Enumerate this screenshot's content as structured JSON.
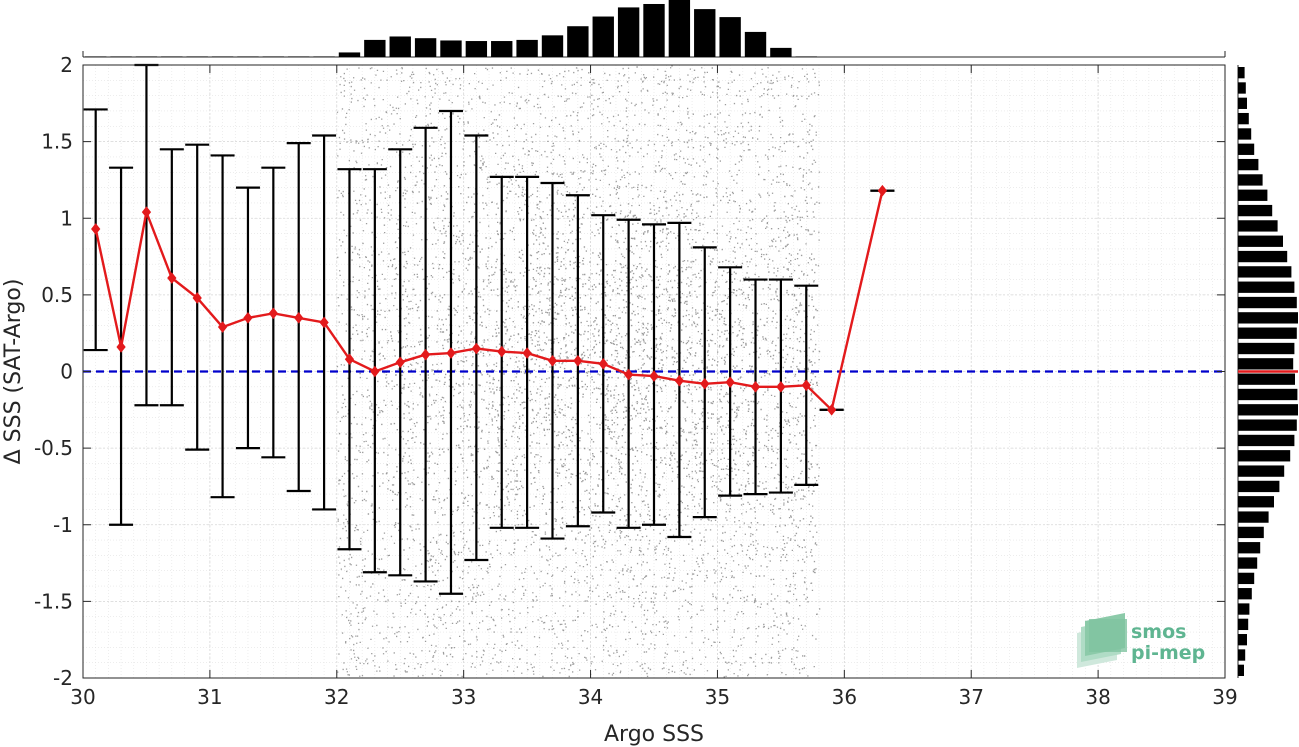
{
  "chart_data": {
    "type": "scatter",
    "xlabel": "Argo SSS",
    "ylabel": "Δ SSS (SAT-Argo)",
    "xlim": [
      30,
      39
    ],
    "ylim": [
      -2,
      2
    ],
    "xticks": [
      "30",
      "31",
      "32",
      "33",
      "34",
      "35",
      "36",
      "37",
      "38",
      "39"
    ],
    "yticks": [
      "-2",
      "-1.5",
      "-1",
      "-0.5",
      "0",
      "0.5",
      "1",
      "1.5",
      "2"
    ],
    "grid": true,
    "minor_grid": true,
    "zero_line": {
      "y": 0,
      "color": "#0000cc",
      "style": "dashed"
    },
    "scatter_cloud": {
      "x_range": [
        32.0,
        35.8
      ],
      "y_range": [
        -2,
        2
      ],
      "color": "#8c8c8c"
    },
    "binned_mean": {
      "color": "#e31a1c",
      "x": [
        30.1,
        30.3,
        30.5,
        30.7,
        30.9,
        31.1,
        31.3,
        31.5,
        31.7,
        31.9,
        32.1,
        32.3,
        32.5,
        32.7,
        32.9,
        33.1,
        33.3,
        33.5,
        33.7,
        33.9,
        34.1,
        34.3,
        34.5,
        34.7,
        34.9,
        35.1,
        35.3,
        35.5,
        35.7,
        35.9,
        36.3
      ],
      "y": [
        0.93,
        0.16,
        1.04,
        0.61,
        0.48,
        0.29,
        0.35,
        0.38,
        0.35,
        0.32,
        0.08,
        0.0,
        0.06,
        0.11,
        0.12,
        0.15,
        0.13,
        0.12,
        0.07,
        0.07,
        0.05,
        -0.02,
        -0.03,
        -0.06,
        -0.08,
        -0.07,
        -0.1,
        -0.1,
        -0.09,
        -0.25,
        1.18
      ],
      "err_low": [
        0.14,
        -1.0,
        -0.22,
        -0.22,
        -0.51,
        -0.82,
        -0.5,
        -0.56,
        -0.78,
        -0.9,
        -1.16,
        -1.31,
        -1.33,
        -1.37,
        -1.45,
        -1.23,
        -1.02,
        -1.02,
        -1.09,
        -1.01,
        -0.92,
        -1.02,
        -1.0,
        -1.08,
        -0.95,
        -0.81,
        -0.8,
        -0.79,
        -0.74,
        -0.25,
        1.18
      ],
      "err_high": [
        1.71,
        1.33,
        2.0,
        1.45,
        1.48,
        1.41,
        1.2,
        1.33,
        1.49,
        1.54,
        1.32,
        1.32,
        1.45,
        1.59,
        1.7,
        1.54,
        1.27,
        1.27,
        1.23,
        1.15,
        1.02,
        0.99,
        0.96,
        0.97,
        0.81,
        0.68,
        0.6,
        0.6,
        0.56,
        -0.25,
        1.18
      ]
    },
    "top_histogram": {
      "bin_width": 0.2,
      "x_start": 30.0,
      "values": [
        0.01,
        0.01,
        0.01,
        0.01,
        0.01,
        0.01,
        0.01,
        0.01,
        0.01,
        0.01,
        0.08,
        0.3,
        0.36,
        0.33,
        0.29,
        0.28,
        0.28,
        0.3,
        0.38,
        0.54,
        0.71,
        0.87,
        0.93,
        1.0,
        0.84,
        0.7,
        0.44,
        0.16,
        0.01
      ]
    },
    "right_histogram": {
      "bin_width": 0.1,
      "y_start": -2.0,
      "values": [
        0.1,
        0.12,
        0.15,
        0.17,
        0.19,
        0.23,
        0.27,
        0.32,
        0.37,
        0.43,
        0.51,
        0.6,
        0.69,
        0.77,
        0.87,
        0.94,
        0.98,
        1.0,
        0.99,
        0.95,
        0.92,
        0.94,
        0.98,
        1.0,
        0.98,
        0.94,
        0.89,
        0.82,
        0.75,
        0.66,
        0.57,
        0.49,
        0.41,
        0.34,
        0.27,
        0.22,
        0.18,
        0.15,
        0.13,
        0.11
      ]
    },
    "logo": {
      "line1": "smos",
      "line2": "pi-mep"
    }
  }
}
